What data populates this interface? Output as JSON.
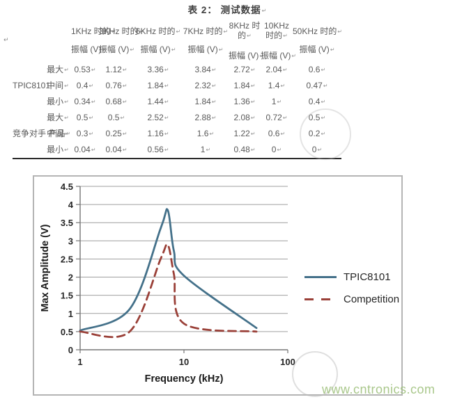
{
  "page": {
    "watermark_url": "www.cntronics.com",
    "paragraph_mark": "↵"
  },
  "doc_table": {
    "title": "表 2： 测试数据",
    "freq_headers": [
      "1KHz 时的",
      "3KHz 时的",
      "6KHz 时的",
      "7KHz 时的",
      "8KHz 时的",
      "10KHz 时的",
      "50KHz 时的"
    ],
    "amplitude_header": "振幅 (V)",
    "groups": [
      {
        "label": "TPIC8101",
        "label_mark": false,
        "rows": [
          {
            "stat": "最大",
            "values": [
              "0.53",
              "1.12",
              "3.36",
              "3.84",
              "2.72",
              "2.04",
              "0.6"
            ]
          },
          {
            "stat": "中间",
            "values": [
              "0.4",
              "0.76",
              "1.84",
              "2.32",
              "1.84",
              "1.4",
              "0.47"
            ]
          },
          {
            "stat": "最小",
            "values": [
              "0.34",
              "0.68",
              "1.44",
              "1.84",
              "1.36",
              "1",
              "0.4"
            ]
          }
        ]
      },
      {
        "label": "竞争对手\n产品",
        "label_mark": true,
        "rows": [
          {
            "stat": "最大",
            "values": [
              "0.5",
              "0.5",
              "2.52",
              "2.88",
              "2.08",
              "0.72",
              "0.5"
            ]
          },
          {
            "stat": "中间",
            "values": [
              "0.3",
              "0.25",
              "1.16",
              "1.6",
              "1.22",
              "0.6",
              "0.2"
            ]
          },
          {
            "stat": "最小",
            "values": [
              "0.04",
              "0.04",
              "0.56",
              "1",
              "0.48",
              "0",
              "0"
            ]
          }
        ]
      }
    ]
  },
  "chart_data": {
    "type": "line",
    "x": [
      1,
      3,
      6,
      7,
      8,
      10,
      50
    ],
    "x_scale": "log",
    "xticks": [
      "1",
      "10",
      "100"
    ],
    "series": [
      {
        "name": "TPIC8101",
        "values": [
          0.53,
          1.12,
          3.36,
          3.84,
          2.72,
          2.04,
          0.6
        ],
        "color": "#44718a",
        "style": "solid"
      },
      {
        "name": "Competition",
        "values": [
          0.5,
          0.5,
          2.52,
          2.88,
          2.08,
          0.72,
          0.5
        ],
        "color": "#9a4038",
        "style": "dashed"
      }
    ],
    "xlabel": "Frequency (kHz)",
    "ylabel": "Max Amplitude (V)",
    "xlim": [
      1,
      100
    ],
    "ylim": [
      0,
      4.5
    ],
    "ytick_step": 0.5,
    "grid": "horizontal",
    "legend_position": "right-outside"
  }
}
